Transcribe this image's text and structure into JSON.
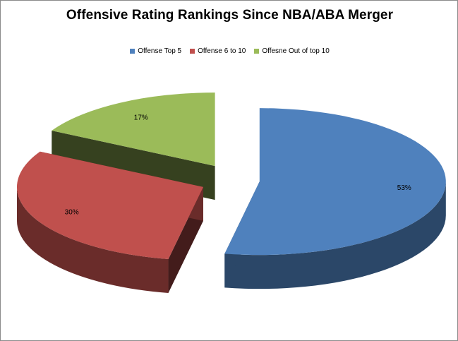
{
  "chart_data": {
    "type": "pie",
    "title": "Offensive Rating Rankings Since NBA/ABA Merger",
    "style": "3d-exploded",
    "legend_position": "top",
    "slices": [
      {
        "name": "Offense Top 5",
        "value": 53,
        "label": "53%",
        "color": "#4f81bd"
      },
      {
        "name": "Offense 6 to 10",
        "value": 30,
        "label": "30%",
        "color": "#c0504d"
      },
      {
        "name": "Offesne Out of top 10",
        "value": 17,
        "label": "17%",
        "color": "#9bbb59"
      }
    ]
  }
}
